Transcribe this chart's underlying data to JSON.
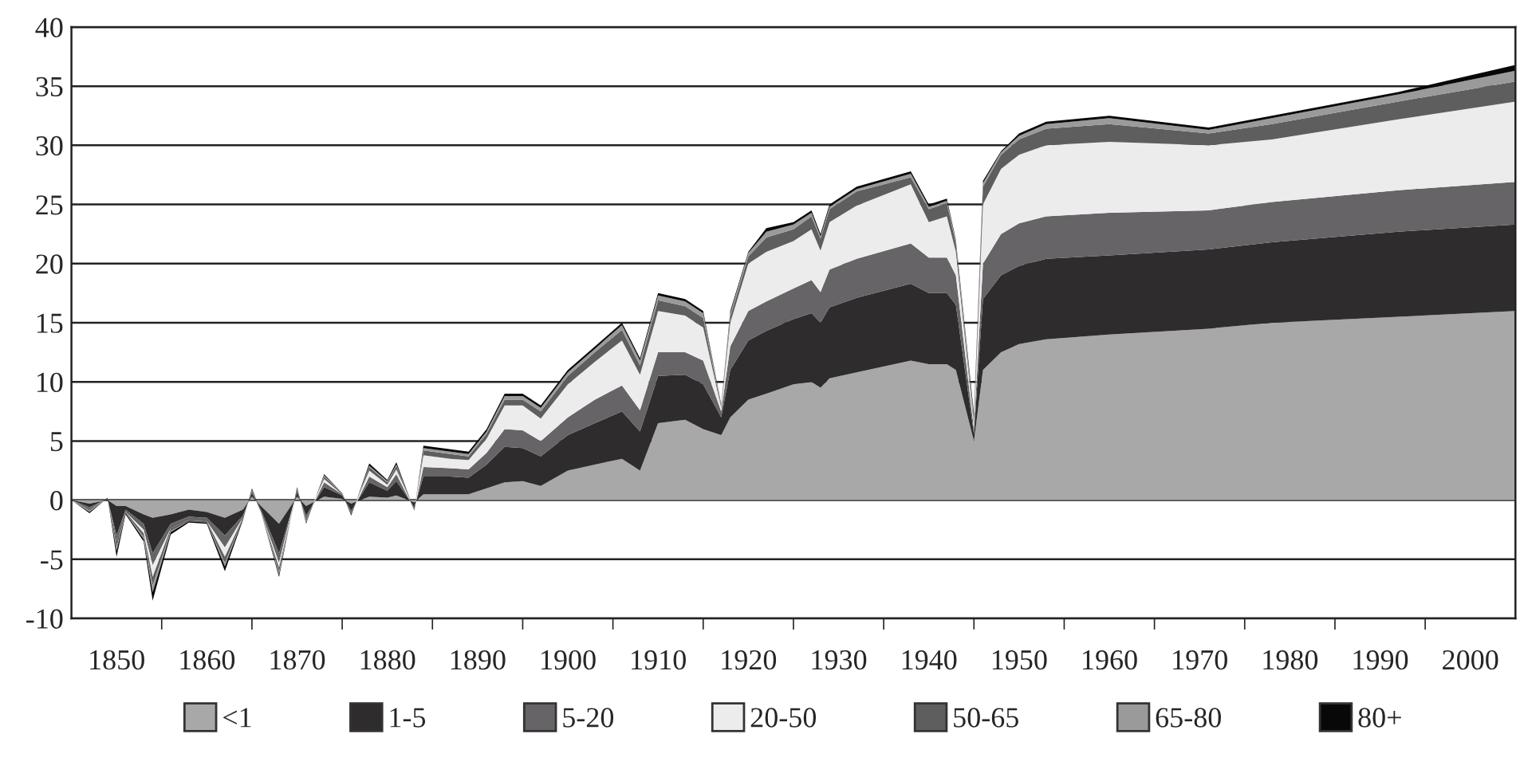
{
  "chart_data": {
    "type": "area",
    "stacked": true,
    "grid": "y",
    "legend": "bottom",
    "x": [
      1845,
      1847,
      1849,
      1850,
      1851,
      1853,
      1854,
      1856,
      1858,
      1860,
      1862,
      1864,
      1865,
      1866,
      1868,
      1870,
      1871,
      1873,
      1875,
      1876,
      1878,
      1880,
      1881,
      1883,
      1884,
      1887,
      1889,
      1891,
      1893,
      1895,
      1897,
      1900,
      1903,
      1906,
      1908,
      1910,
      1913,
      1915,
      1917,
      1918,
      1920,
      1922,
      1925,
      1927,
      1928,
      1929,
      1932,
      1938,
      1940,
      1942,
      1943,
      1945,
      1946,
      1948,
      1950,
      1953,
      1960,
      1971,
      1978,
      1992,
      2005
    ],
    "series": [
      {
        "name": "<1",
        "color": "#a8a8a8",
        "values": [
          0,
          -0.3,
          0,
          -0.5,
          -0.5,
          -1.2,
          -1.5,
          -1.2,
          -0.8,
          -1.0,
          -1.5,
          -0.8,
          0.3,
          -0.5,
          -2.0,
          0.3,
          -0.5,
          0.3,
          0.1,
          -0.3,
          0.3,
          0.2,
          0.4,
          -0.2,
          0.5,
          0.5,
          0.5,
          1,
          1.5,
          1.6,
          1.2,
          2.5,
          3,
          3.5,
          2.5,
          6.5,
          6.8,
          6,
          5.5,
          7,
          8.5,
          9,
          9.8,
          10,
          9.5,
          10.3,
          10.8,
          11.8,
          11.5,
          11.5,
          11,
          5,
          11,
          12.5,
          13.2,
          13.6,
          14,
          14.5,
          15,
          15.5,
          16
        ]
      },
      {
        "name": "1-5",
        "color": "#2e2c2c",
        "values": [
          0,
          -0.3,
          0.1,
          -2.5,
          -0.3,
          -0.8,
          -3,
          -0.8,
          -0.6,
          -0.5,
          -1.5,
          -0.5,
          0.3,
          -0.3,
          -2.5,
          0.4,
          -0.8,
          0.8,
          0.3,
          -0.6,
          1.2,
          0.6,
          1.2,
          -0.4,
          1.5,
          1.5,
          1.4,
          2,
          3,
          2.8,
          2.5,
          3,
          3.5,
          4,
          3.3,
          4,
          3.8,
          3.8,
          1.5,
          4,
          5,
          5.3,
          5.5,
          5.8,
          5.5,
          6,
          6.3,
          6.5,
          6,
          6,
          5.5,
          0.6,
          6,
          6.5,
          6.6,
          6.8,
          6.7,
          6.7,
          6.8,
          7.2,
          7.3
        ]
      },
      {
        "name": "5-20",
        "color": "#666466",
        "values": [
          0,
          -0.2,
          0.1,
          -0.5,
          -0.2,
          -0.5,
          -1,
          -0.4,
          -0.3,
          -0.3,
          -1,
          -0.2,
          0.2,
          -0.2,
          -0.8,
          0.2,
          -0.3,
          0.4,
          0.1,
          -0.2,
          0.5,
          0.3,
          0.6,
          -0.2,
          0.8,
          0.7,
          0.7,
          1,
          1.5,
          1.5,
          1.3,
          1.5,
          2,
          2.2,
          1.8,
          2,
          1.9,
          2,
          0.5,
          2,
          2.5,
          2.5,
          2.6,
          2.8,
          2.6,
          3.2,
          3.3,
          3.4,
          3,
          3,
          2.5,
          0.4,
          3,
          3.5,
          3.6,
          3.6,
          3.6,
          3.3,
          3.4,
          3.5,
          3.6
        ]
      },
      {
        "name": "20-50",
        "color": "#ececec",
        "values": [
          0,
          0,
          0,
          0,
          0,
          -0.3,
          -1,
          0,
          0,
          0,
          -0.8,
          0,
          0,
          0,
          -0.4,
          0,
          0,
          0.3,
          0,
          0,
          0.5,
          0.2,
          0.4,
          0,
          1,
          0.8,
          0.8,
          1.2,
          2,
          2.1,
          1.9,
          2.8,
          3.2,
          3.8,
          3,
          3.5,
          3.1,
          2.8,
          0.3,
          2,
          4,
          4.2,
          4,
          4.3,
          3.5,
          4,
          4.5,
          5,
          3,
          3.5,
          2,
          0.4,
          5,
          5.5,
          5.8,
          6,
          6,
          5.5,
          5.3,
          6,
          6.8
        ]
      },
      {
        "name": "50-65",
        "color": "#5f5e5f",
        "values": [
          0,
          -0.1,
          0,
          -0.5,
          -0.1,
          -0.3,
          -0.7,
          -0.2,
          -0.1,
          -0.1,
          -0.5,
          -0.1,
          0.1,
          0,
          -0.4,
          0.1,
          -0.2,
          0.2,
          0.1,
          -0.1,
          0.3,
          0.2,
          0.3,
          -0.1,
          0.4,
          0.4,
          0.3,
          0.4,
          0.5,
          0.5,
          0.6,
          0.7,
          0.8,
          0.9,
          0.8,
          0.9,
          0.8,
          0.8,
          0.1,
          0.5,
          0.6,
          1.2,
          1.0,
          1.1,
          1.0,
          1.1,
          1.2,
          0.6,
          1.1,
          1.1,
          0.7,
          0.3,
          1.5,
          1.2,
          1.3,
          1.4,
          1.5,
          1.0,
          1.3,
          1.5,
          1.7
        ]
      },
      {
        "name": "65-80",
        "color": "#9a9a9a",
        "values": [
          0,
          -0.1,
          0,
          -0.3,
          0,
          -0.2,
          -0.6,
          -0.1,
          0,
          0,
          -0.3,
          0,
          0,
          0,
          -0.2,
          0,
          -0.1,
          0.1,
          0,
          0,
          0.1,
          0.1,
          0.1,
          0,
          0.2,
          0.2,
          0.2,
          0.2,
          0.3,
          0.3,
          0.3,
          0.3,
          0.3,
          0.4,
          0.4,
          0.4,
          0.4,
          0.4,
          0.1,
          0.3,
          0.3,
          0.5,
          0.4,
          0.3,
          0.2,
          0.2,
          0.2,
          0.3,
          0.2,
          0.2,
          0.2,
          0.3,
          0.3,
          0.2,
          0.3,
          0.4,
          0.5,
          0.3,
          0.5,
          0.6,
          0.9
        ]
      },
      {
        "name": "80+",
        "color": "#080808",
        "values": [
          0,
          -0.1,
          0,
          -0.5,
          -0.1,
          -0.2,
          -0.7,
          -0.2,
          -0.1,
          -0.1,
          -0.4,
          -0.1,
          0.1,
          0,
          -0.2,
          0.1,
          -0.1,
          0.1,
          0,
          -0.1,
          0.2,
          0.1,
          0.2,
          0,
          0.2,
          0.2,
          0.2,
          0.2,
          0.2,
          0.2,
          0.2,
          0.2,
          0.2,
          0.2,
          0.2,
          0.2,
          0.2,
          0.2,
          0.1,
          0.2,
          0.1,
          0.3,
          0.2,
          0.2,
          0.2,
          0.2,
          0.2,
          0.2,
          0.2,
          0.2,
          0.1,
          0.3,
          0.2,
          0.1,
          0.2,
          0.2,
          0.2,
          0.2,
          0.2,
          0.2,
          0.5
        ]
      }
    ],
    "xlim": [
      1845,
      2005
    ],
    "xticks": [
      {
        "value": 1850,
        "label": "1850"
      },
      {
        "value": 1860,
        "label": "1860"
      },
      {
        "value": 1870,
        "label": "1870"
      },
      {
        "value": 1880,
        "label": "1880"
      },
      {
        "value": 1890,
        "label": "1890"
      },
      {
        "value": 1900,
        "label": "1900"
      },
      {
        "value": 1910,
        "label": "1910"
      },
      {
        "value": 1920,
        "label": "1920"
      },
      {
        "value": 1930,
        "label": "1930"
      },
      {
        "value": 1940,
        "label": "1940"
      },
      {
        "value": 1950,
        "label": "1950"
      },
      {
        "value": 1960,
        "label": "1960"
      },
      {
        "value": 1970,
        "label": "1970"
      },
      {
        "value": 1980,
        "label": "1980"
      },
      {
        "value": 1990,
        "label": "1990"
      },
      {
        "value": 2000,
        "label": "2000"
      },
      {
        "value": 1855,
        "label": null
      },
      {
        "value": 1865,
        "label": null
      },
      {
        "value": 1875,
        "label": null
      },
      {
        "value": 1885,
        "label": null
      },
      {
        "value": 1895,
        "label": null
      },
      {
        "value": 1905,
        "label": null
      },
      {
        "value": 1915,
        "label": null
      },
      {
        "value": 1925,
        "label": null
      },
      {
        "value": 1935,
        "label": null
      },
      {
        "value": 1945,
        "label": null
      },
      {
        "value": 1955,
        "label": null
      },
      {
        "value": 1965,
        "label": null
      },
      {
        "value": 1975,
        "label": null
      },
      {
        "value": 1985,
        "label": null
      },
      {
        "value": 1995,
        "label": null
      }
    ],
    "ylim": [
      -10,
      40
    ],
    "yticks": [
      -10,
      -5,
      0,
      5,
      10,
      15,
      20,
      25,
      30,
      35,
      40
    ]
  }
}
